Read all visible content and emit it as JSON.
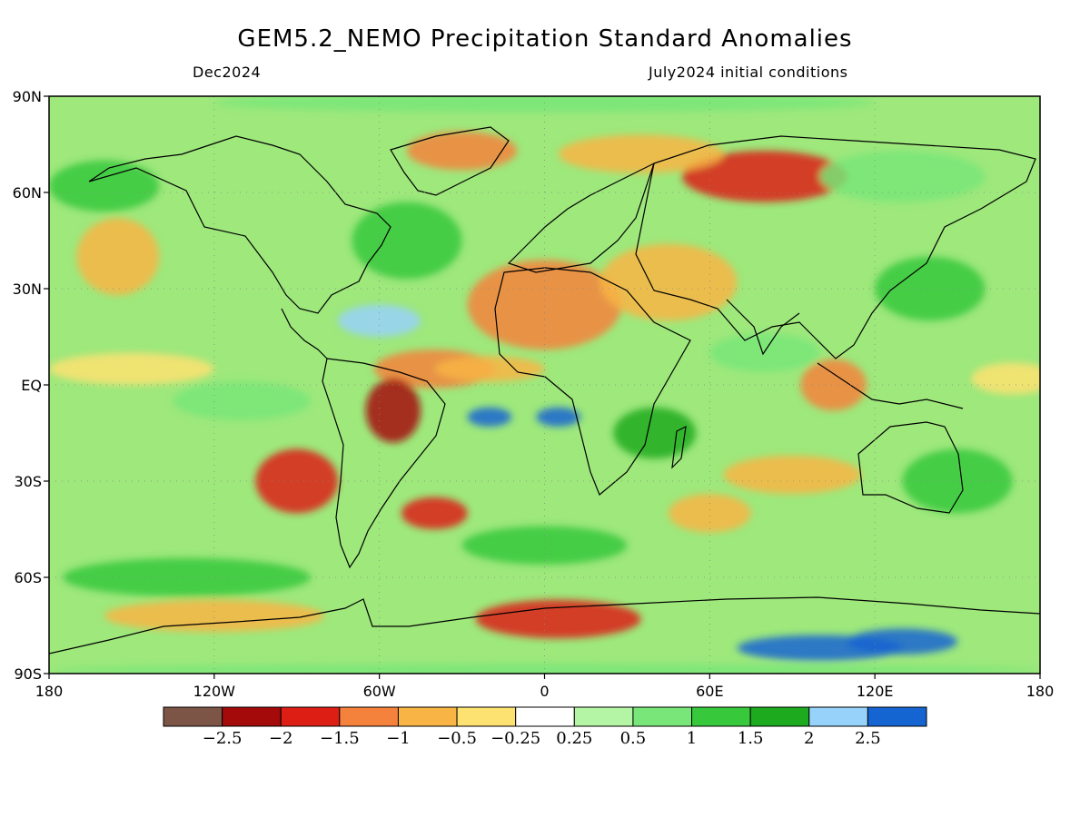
{
  "title": "GEM5.2_NEMO Precipitation Standard Anomalies",
  "subtitle_left": "Dec2024",
  "subtitle_right": "July2024 initial conditions",
  "map": {
    "lon_range": [
      -180,
      180
    ],
    "lat_range": [
      -90,
      90
    ],
    "lon_ticks": [
      {
        "value": -180,
        "label": "180"
      },
      {
        "value": -120,
        "label": "120W"
      },
      {
        "value": -60,
        "label": "60W"
      },
      {
        "value": 0,
        "label": "0"
      },
      {
        "value": 60,
        "label": "60E"
      },
      {
        "value": 120,
        "label": "120E"
      },
      {
        "value": 180,
        "label": "180"
      }
    ],
    "lat_ticks": [
      {
        "value": 90,
        "label": "90N"
      },
      {
        "value": 60,
        "label": "60N"
      },
      {
        "value": 30,
        "label": "30N"
      },
      {
        "value": 0,
        "label": "EQ"
      },
      {
        "value": -30,
        "label": "30S"
      },
      {
        "value": -60,
        "label": "60S"
      },
      {
        "value": -90,
        "label": "90S"
      }
    ]
  },
  "colorbar": {
    "colors": [
      "#7d5547",
      "#a40a0a",
      "#dc1e14",
      "#f5823c",
      "#f8b545",
      "#fde272",
      "#ffffff",
      "#b4f5a5",
      "#78e678",
      "#37c83c",
      "#1eaa1e",
      "#96d2fa",
      "#1464d2"
    ],
    "labels": [
      "−2.5",
      "−2",
      "−1.5",
      "−1",
      "−0.5",
      "−0.25",
      "0.25",
      "0.5",
      "1",
      "1.5",
      "2",
      "2.5"
    ]
  },
  "anomaly_regions": [
    {
      "lon": 0,
      "lat": 25,
      "rx": 28,
      "ry": 14,
      "value": -1.2
    },
    {
      "lon": 45,
      "lat": 32,
      "rx": 25,
      "ry": 12,
      "value": -1.0
    },
    {
      "lon": 80,
      "lat": 65,
      "rx": 30,
      "ry": 8,
      "value": -1.8
    },
    {
      "lon": 35,
      "lat": 72,
      "rx": 30,
      "ry": 6,
      "value": -1.0
    },
    {
      "lon": -30,
      "lat": 73,
      "rx": 20,
      "ry": 6,
      "value": -1.5
    },
    {
      "lon": -40,
      "lat": 5,
      "rx": 22,
      "ry": 6,
      "value": -1.5
    },
    {
      "lon": -55,
      "lat": -8,
      "rx": 10,
      "ry": 10,
      "value": -2.2
    },
    {
      "lon": -20,
      "lat": 5,
      "rx": 20,
      "ry": 4,
      "value": -1.0
    },
    {
      "lon": -150,
      "lat": 5,
      "rx": 30,
      "ry": 5,
      "value": -0.3
    },
    {
      "lon": 170,
      "lat": 2,
      "rx": 15,
      "ry": 5,
      "value": -0.5
    },
    {
      "lon": -155,
      "lat": 40,
      "rx": 15,
      "ry": 12,
      "value": -0.8
    },
    {
      "lon": -90,
      "lat": -30,
      "rx": 15,
      "ry": 10,
      "value": -1.6
    },
    {
      "lon": -40,
      "lat": -40,
      "rx": 12,
      "ry": 5,
      "value": -1.6
    },
    {
      "lon": 105,
      "lat": 0,
      "rx": 12,
      "ry": 8,
      "value": -1.2
    },
    {
      "lon": 90,
      "lat": -28,
      "rx": 25,
      "ry": 6,
      "value": -1.0
    },
    {
      "lon": 5,
      "lat": -73,
      "rx": 30,
      "ry": 6,
      "value": -1.6
    },
    {
      "lon": -120,
      "lat": -72,
      "rx": 40,
      "ry": 5,
      "value": -0.8
    },
    {
      "lon": 60,
      "lat": -40,
      "rx": 15,
      "ry": 6,
      "value": -1.0
    },
    {
      "lon": -50,
      "lat": 45,
      "rx": 20,
      "ry": 12,
      "value": 1.0
    },
    {
      "lon": -60,
      "lat": 20,
      "rx": 15,
      "ry": 5,
      "value": 2.0
    },
    {
      "lon": -20,
      "lat": -10,
      "rx": 8,
      "ry": 3,
      "value": 2.5
    },
    {
      "lon": 5,
      "lat": -10,
      "rx": 8,
      "ry": 3,
      "value": 2.5
    },
    {
      "lon": 40,
      "lat": -15,
      "rx": 15,
      "ry": 8,
      "value": 1.5
    },
    {
      "lon": 80,
      "lat": 10,
      "rx": 20,
      "ry": 6,
      "value": 0.6
    },
    {
      "lon": 140,
      "lat": 30,
      "rx": 20,
      "ry": 10,
      "value": 1.0
    },
    {
      "lon": -130,
      "lat": -60,
      "rx": 45,
      "ry": 6,
      "value": 1.2
    },
    {
      "lon": 0,
      "lat": -50,
      "rx": 30,
      "ry": 6,
      "value": 1.0
    },
    {
      "lon": 100,
      "lat": -82,
      "rx": 30,
      "ry": 4,
      "value": 2.5
    },
    {
      "lon": 130,
      "lat": -80,
      "rx": 20,
      "ry": 4,
      "value": 2.5
    },
    {
      "lon": -160,
      "lat": 62,
      "rx": 20,
      "ry": 8,
      "value": 1.0
    },
    {
      "lon": 130,
      "lat": 65,
      "rx": 30,
      "ry": 8,
      "value": 0.8
    },
    {
      "lon": 150,
      "lat": -30,
      "rx": 20,
      "ry": 10,
      "value": 1.0
    },
    {
      "lon": -110,
      "lat": -5,
      "rx": 25,
      "ry": 6,
      "value": 0.8
    },
    {
      "lon": 0,
      "lat": 88,
      "rx": 120,
      "ry": 3,
      "value": 0.6
    },
    {
      "lon": 0,
      "lat": -89,
      "rx": 180,
      "ry": 2,
      "value": 0.5
    }
  ]
}
